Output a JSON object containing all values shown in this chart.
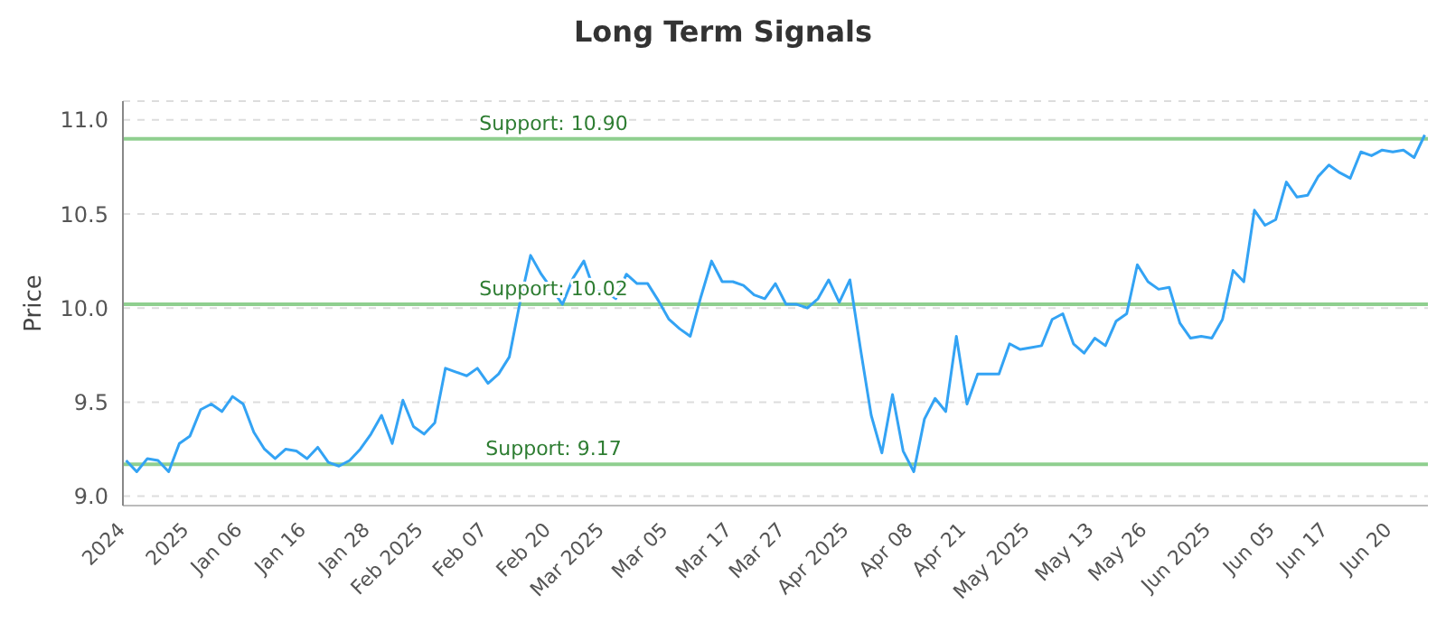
{
  "chart_data": {
    "type": "line",
    "title": "Long Term Signals",
    "ylabel": "Price",
    "categories": [
      "2024",
      null,
      null,
      null,
      null,
      null,
      "2025",
      null,
      null,
      null,
      null,
      "Jan 06",
      null,
      null,
      null,
      null,
      null,
      "Jan 16",
      null,
      null,
      null,
      null,
      null,
      "Jan 28",
      null,
      null,
      null,
      null,
      "Feb 2025",
      null,
      null,
      null,
      null,
      null,
      "Feb 07",
      null,
      null,
      null,
      null,
      null,
      "Feb 20",
      null,
      null,
      null,
      null,
      "Mar 2025",
      null,
      null,
      null,
      null,
      null,
      "Mar 05",
      null,
      null,
      null,
      null,
      null,
      "Mar 17",
      null,
      null,
      null,
      null,
      "Mar 27",
      null,
      null,
      null,
      null,
      null,
      "Apr 2025",
      null,
      null,
      null,
      null,
      null,
      "Apr 08",
      null,
      null,
      null,
      null,
      "Apr 21",
      null,
      null,
      null,
      null,
      null,
      "May 2025",
      null,
      null,
      null,
      null,
      null,
      "May 13",
      null,
      null,
      null,
      null,
      "May 26",
      null,
      null,
      null,
      null,
      null,
      "Jun 2025",
      null,
      null,
      null,
      null,
      null,
      "Jun 05",
      null,
      null,
      null,
      null,
      "Jun 17",
      null,
      null,
      null,
      null,
      null,
      "Jun 20",
      null,
      null,
      null
    ],
    "series": [
      {
        "color": "#33a3f4",
        "values": [
          9.19,
          9.13,
          9.2,
          9.19,
          9.13,
          9.28,
          9.32,
          9.46,
          9.49,
          9.45,
          9.53,
          9.49,
          9.34,
          9.25,
          9.2,
          9.25,
          9.24,
          9.2,
          9.26,
          9.18,
          9.16,
          9.19,
          9.25,
          9.33,
          9.43,
          9.28,
          9.51,
          9.37,
          9.33,
          9.39,
          9.68,
          9.66,
          9.64,
          9.68,
          9.6,
          9.65,
          9.74,
          10.03,
          10.28,
          10.18,
          10.1,
          10.02,
          10.16,
          10.25,
          10.09,
          10.09,
          10.05,
          10.18,
          10.13,
          10.13,
          10.04,
          9.94,
          9.89,
          9.85,
          10.06,
          10.25,
          10.14,
          10.14,
          10.12,
          10.07,
          10.05,
          10.13,
          10.02,
          10.02,
          10.0,
          10.05,
          10.15,
          10.03,
          10.15,
          9.78,
          9.43,
          9.23,
          9.54,
          9.24,
          9.13,
          9.41,
          9.52,
          9.45,
          9.85,
          9.49,
          9.65,
          9.65,
          9.65,
          9.81,
          9.78,
          9.79,
          9.8,
          9.94,
          9.97,
          9.81,
          9.76,
          9.84,
          9.8,
          9.93,
          9.97,
          10.23,
          10.14,
          10.1,
          10.11,
          9.92,
          9.84,
          9.85,
          9.84,
          9.94,
          10.2,
          10.14,
          10.52,
          10.44,
          10.47,
          10.67,
          10.59,
          10.6,
          10.7,
          10.76,
          10.72,
          10.69,
          10.83,
          10.81,
          10.84,
          10.83,
          10.84,
          10.8,
          10.92
        ]
      }
    ],
    "ylim": [
      8.95,
      11.1
    ],
    "yticks": [
      {
        "value": 9.0,
        "label": "9.0"
      },
      {
        "value": 9.5,
        "label": "9.5"
      },
      {
        "value": 10.0,
        "label": "10.0"
      },
      {
        "value": 10.5,
        "label": "10.5"
      },
      {
        "value": 11.0,
        "label": "11.0"
      }
    ],
    "ref_lines": [
      {
        "axis": "y",
        "value": 10.9,
        "label": "Support: 10.90",
        "color": "#8fcf8f"
      },
      {
        "axis": "y",
        "value": 10.02,
        "label": "Support: 10.02",
        "color": "#8fcf8f"
      },
      {
        "axis": "y",
        "value": 9.17,
        "label": "Support: 9.17",
        "color": "#8fcf8f"
      }
    ],
    "grid": "y",
    "marker": "none",
    "line_style": "solid",
    "legend": false
  }
}
